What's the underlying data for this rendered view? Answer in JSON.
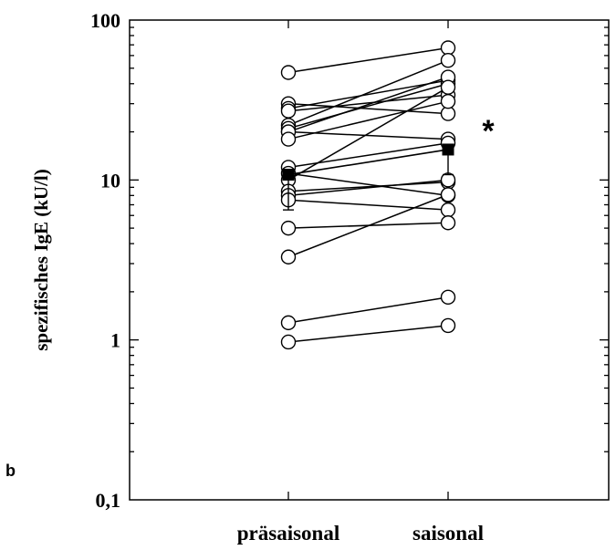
{
  "chart_data": {
    "type": "scatter",
    "panel_label": "b",
    "title": "",
    "xlabel": "",
    "ylabel": "spezifisches IgE (kU/l)",
    "yscale": "log",
    "ylim": [
      0.1,
      100
    ],
    "y_ticks": [
      {
        "value": 0.1,
        "label": "0,1"
      },
      {
        "value": 1,
        "label": "1"
      },
      {
        "value": 10,
        "label": "10"
      },
      {
        "value": 100,
        "label": "100"
      }
    ],
    "categories": [
      "präsaisonal",
      "saisonal"
    ],
    "grid": false,
    "paired_subjects": [
      [
        47,
        67
      ],
      [
        30,
        26
      ],
      [
        28,
        42
      ],
      [
        27,
        34
      ],
      [
        22,
        56
      ],
      [
        21,
        40
      ],
      [
        20,
        44
      ],
      [
        20,
        18
      ],
      [
        18,
        31
      ],
      [
        12,
        17
      ],
      [
        11,
        8
      ],
      [
        10,
        38
      ],
      [
        8.5,
        9.7
      ],
      [
        8,
        10
      ],
      [
        7.5,
        6.5
      ],
      [
        5,
        5.4
      ],
      [
        3.3,
        8.1
      ],
      [
        1.28,
        1.85
      ],
      [
        0.97,
        1.23
      ]
    ],
    "series": [
      {
        "name": "",
        "marker": "filled-square",
        "values": [
          10.8,
          15.5
        ],
        "error_low": [
          6.5,
          10.8
        ]
      }
    ],
    "annotations": [
      {
        "text": "*",
        "near": "saisonal"
      }
    ],
    "colors": {
      "axis": "#000000",
      "marker_fill": "#ffffff",
      "mean_fill": "#000000"
    }
  }
}
